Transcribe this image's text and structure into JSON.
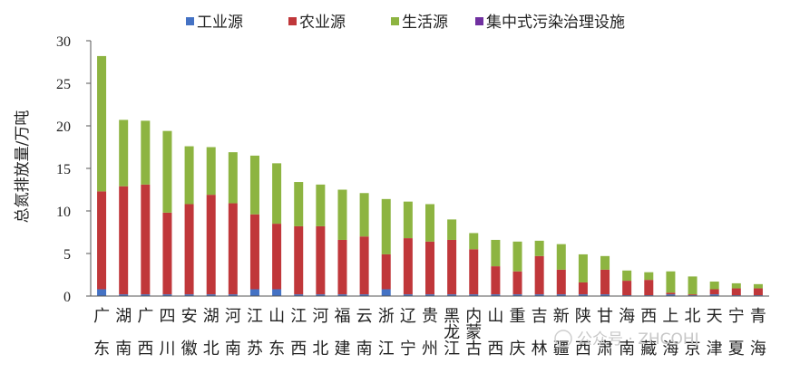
{
  "chart_data": {
    "type": "bar",
    "stacked": true,
    "ylabel": "总氮排放量/万吨",
    "ylim": [
      0,
      30
    ],
    "yticks": [
      0,
      5,
      10,
      15,
      20,
      25,
      30
    ],
    "legend_position": "top",
    "categories": [
      "广东",
      "湖南",
      "广西",
      "四川",
      "安徽",
      "湖北",
      "河南",
      "江苏",
      "山东",
      "江西",
      "河北",
      "福建",
      "云南",
      "浙江",
      "辽宁",
      "贵州",
      "黑龙江",
      "内蒙古",
      "山西",
      "重庆",
      "吉林",
      "新疆",
      "陕西",
      "甘肃",
      "海南",
      "西藏",
      "上海",
      "北京",
      "天津",
      "宁夏",
      "青海"
    ],
    "series": [
      {
        "name": "工业源",
        "color": "#4472C4",
        "values": [
          0.8,
          0.2,
          0.2,
          0.2,
          0.2,
          0.2,
          0.2,
          0.8,
          0.8,
          0.2,
          0.2,
          0.2,
          0.2,
          0.8,
          0.2,
          0.2,
          0.2,
          0.2,
          0.2,
          0.2,
          0.2,
          0.2,
          0.2,
          0.2,
          0.1,
          0.1,
          0.2,
          0.1,
          0.2,
          0.1,
          0.1
        ]
      },
      {
        "name": "农业源",
        "color": "#C0373A",
        "values": [
          11.5,
          12.7,
          12.9,
          9.6,
          10.6,
          11.7,
          10.7,
          8.8,
          7.7,
          8.0,
          8.0,
          6.4,
          6.8,
          4.1,
          6.6,
          6.2,
          6.4,
          5.3,
          3.3,
          2.7,
          4.5,
          2.9,
          1.4,
          2.9,
          1.7,
          1.8,
          0.2,
          0.1,
          0.6,
          0.8,
          0.8
        ]
      },
      {
        "name": "生活源",
        "color": "#8DB441",
        "values": [
          15.9,
          7.8,
          7.5,
          9.6,
          6.8,
          5.6,
          6.0,
          6.9,
          7.1,
          5.2,
          4.9,
          5.9,
          5.1,
          6.5,
          4.3,
          4.4,
          2.4,
          1.9,
          3.1,
          3.5,
          1.8,
          3.0,
          3.3,
          1.6,
          1.2,
          0.9,
          2.5,
          2.1,
          0.9,
          0.6,
          0.5
        ]
      },
      {
        "name": "集中式污染治理设施",
        "color": "#7030A0",
        "values": [
          0,
          0,
          0,
          0,
          0,
          0,
          0,
          0,
          0,
          0,
          0,
          0,
          0,
          0,
          0,
          0,
          0,
          0,
          0,
          0,
          0,
          0,
          0,
          0,
          0,
          0,
          0,
          0,
          0,
          0,
          0
        ]
      }
    ]
  },
  "watermark": "公众号 · ZHCOHJ"
}
